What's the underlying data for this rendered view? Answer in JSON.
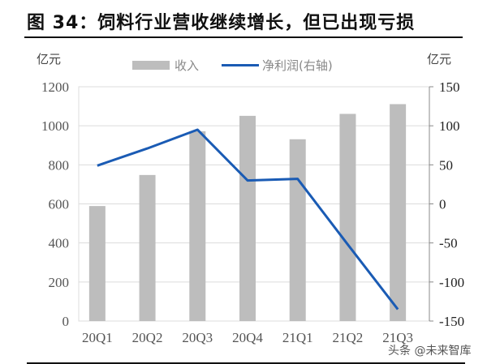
{
  "figure": {
    "title": "图 34：饲料行业营收继续增长，但已出现亏损",
    "watermark": "头条 @未来智库"
  },
  "chart_data": {
    "type": "bar+line",
    "title": "图 34：饲料行业营收继续增长，但已出现亏损",
    "categories": [
      "20Q1",
      "20Q2",
      "20Q3",
      "20Q4",
      "21Q1",
      "21Q2",
      "21Q3"
    ],
    "series": [
      {
        "name": "收入",
        "type": "bar",
        "axis": "left",
        "color": "#bdbdbd",
        "values": [
          589,
          748,
          972,
          1051,
          931,
          1061,
          1111
        ]
      },
      {
        "name": "净利润(右轴)",
        "type": "line",
        "axis": "right",
        "color": "#1a5bb4",
        "values": [
          49,
          71,
          95,
          30,
          32,
          -52,
          -135
        ]
      }
    ],
    "left_axis": {
      "label": "亿元",
      "ylim": [
        0,
        1200
      ],
      "ticks": [
        0,
        200,
        400,
        600,
        800,
        1000,
        1200
      ]
    },
    "right_axis": {
      "label": "亿元",
      "ylim": [
        -150,
        150
      ],
      "ticks": [
        -150,
        -100,
        -50,
        0,
        50,
        100,
        150
      ]
    },
    "legend": {
      "position": "top",
      "entries": [
        "收入",
        "净利润(右轴)"
      ]
    },
    "grid": true
  },
  "labels": {
    "left_unit": "亿元",
    "right_unit": "亿元",
    "legend_bar": "收入",
    "legend_line": "净利润(右轴)"
  }
}
